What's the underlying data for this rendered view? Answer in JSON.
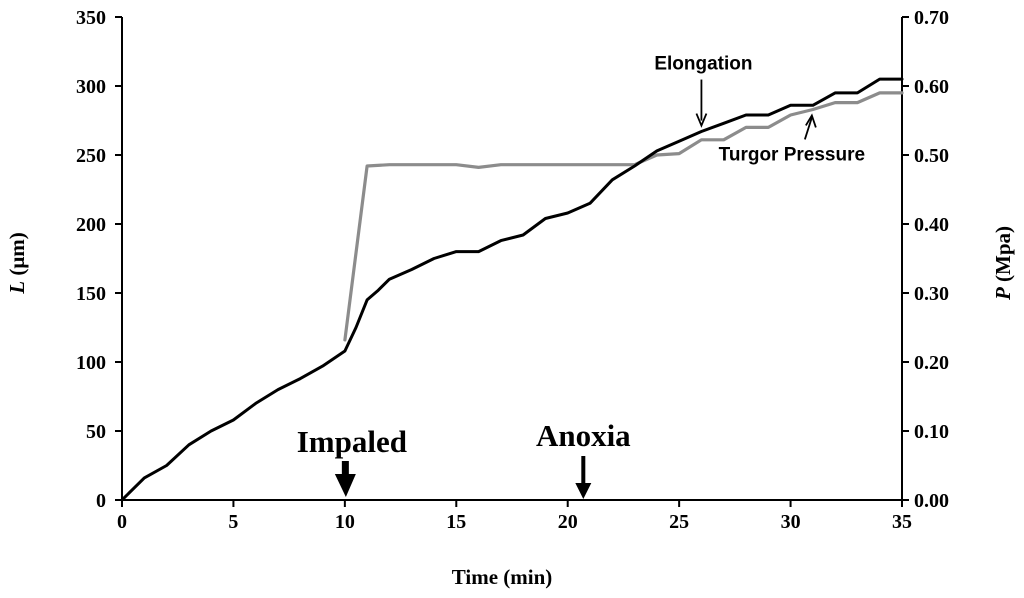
{
  "chart_data": {
    "type": "line",
    "title": "",
    "xlabel": "Time (min)",
    "ylabel_left": {
      "var": "L",
      "unit": " (μm)"
    },
    "ylabel_right": {
      "var": "P",
      "unit": " (Mpa)"
    },
    "xlim": [
      0,
      35
    ],
    "ylim_left": [
      0,
      350
    ],
    "ylim_right": [
      0,
      0.7
    ],
    "x_ticks": [
      "0",
      "5",
      "10",
      "15",
      "20",
      "25",
      "30",
      "35"
    ],
    "y_ticks_left": [
      "0",
      "50",
      "100",
      "150",
      "200",
      "250",
      "300",
      "350"
    ],
    "y_ticks_right": [
      "0.00",
      "0.10",
      "0.20",
      "0.30",
      "0.40",
      "0.50",
      "0.60",
      "0.70"
    ],
    "grid": false,
    "series": [
      {
        "name": "Elongation",
        "axis": "left",
        "color": "#000000",
        "x": [
          0,
          1,
          2,
          3,
          4,
          5,
          6,
          7,
          8,
          9,
          10,
          10.5,
          11,
          11.5,
          12,
          13,
          14,
          15,
          16,
          17,
          18,
          19,
          20,
          21,
          22,
          23,
          24,
          25,
          26,
          27,
          28,
          29,
          30,
          31,
          32,
          33,
          34,
          35
        ],
        "values": [
          0,
          16,
          25,
          40,
          50,
          58,
          70,
          80,
          88,
          97,
          108,
          125,
          145,
          152,
          160,
          167,
          175,
          180,
          180,
          188,
          192,
          204,
          208,
          215,
          232,
          242,
          253,
          260,
          267,
          273,
          279,
          279,
          286,
          286,
          295,
          295,
          305,
          305
        ]
      },
      {
        "name": "Turgor Pressure",
        "axis": "right",
        "color": "#8c8c8c",
        "x": [
          10,
          11,
          12,
          13,
          14,
          15,
          16,
          17,
          18,
          19,
          20,
          21,
          22,
          23,
          24,
          25,
          26,
          27,
          28,
          29,
          30,
          31,
          32,
          33,
          34,
          35
        ],
        "values": [
          0.232,
          0.484,
          0.486,
          0.486,
          0.486,
          0.486,
          0.482,
          0.486,
          0.486,
          0.486,
          0.486,
          0.486,
          0.486,
          0.486,
          0.5,
          0.502,
          0.522,
          0.522,
          0.54,
          0.54,
          0.558,
          0.566,
          0.576,
          0.576,
          0.59,
          0.59
        ]
      }
    ],
    "annotations": [
      {
        "text": "Elongation",
        "series": "Elongation",
        "x": 26,
        "y": 267
      },
      {
        "text": "Turgor Pressure",
        "series": "Turgor Pressure",
        "x": 31,
        "y": 0.566
      }
    ],
    "events": [
      {
        "text": "Impaled",
        "x": 10
      },
      {
        "text": "Anoxia",
        "x": 20.7
      }
    ]
  }
}
